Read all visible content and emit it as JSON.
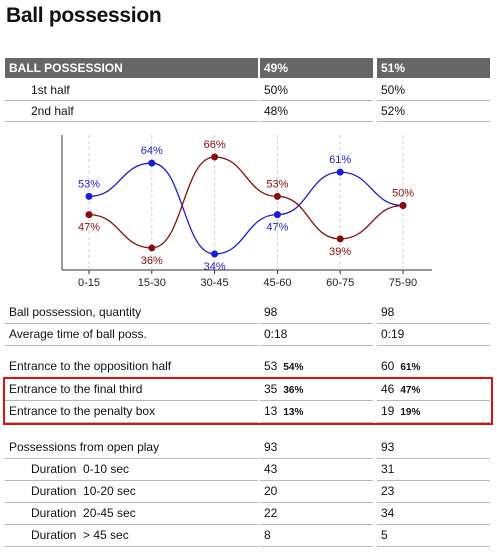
{
  "title": "Ball possession",
  "summary": {
    "header": [
      "BALL POSSESSION",
      "49%",
      "51%"
    ],
    "rows": [
      [
        "1st half",
        "50%",
        "50%"
      ],
      [
        "2nd half",
        "48%",
        "52%"
      ]
    ]
  },
  "chart_data": {
    "type": "line",
    "categories": [
      "0-15",
      "15-30",
      "30-45",
      "45-60",
      "60-75",
      "75-90"
    ],
    "series": [
      {
        "color": "#1c1cd8",
        "values": [
          53,
          64,
          34,
          47,
          61,
          50
        ],
        "value_labels": [
          "53%",
          "64%",
          "34%",
          "47%",
          "61%",
          null
        ]
      },
      {
        "color": "#8a0b0b",
        "values": [
          47,
          36,
          66,
          53,
          39,
          50
        ],
        "value_labels": [
          "47%",
          "36%",
          "66%",
          "53%",
          "39%",
          "50%"
        ]
      }
    ],
    "grid": true
  },
  "stats": {
    "groups": [
      {
        "rows": [
          {
            "label": "Ball possession, quantity",
            "cells": [
              [
                "98"
              ],
              [
                "98"
              ]
            ]
          },
          {
            "label": "Average time of ball poss.",
            "cells": [
              [
                "0:18"
              ],
              [
                "0:19"
              ]
            ]
          }
        ]
      },
      {
        "rows": [
          {
            "label": "Entrance to the opposition half",
            "cells": [
              [
                "53",
                "54%"
              ],
              [
                "60",
                "61%"
              ]
            ]
          }
        ]
      },
      {
        "highlight": true,
        "rows": [
          {
            "label": "Entrance to the final third",
            "cells": [
              [
                "35",
                "36%"
              ],
              [
                "46",
                "47%"
              ]
            ]
          },
          {
            "label": "Entrance to the penalty box",
            "cells": [
              [
                "13",
                "13%"
              ],
              [
                "19",
                "19%"
              ]
            ]
          }
        ]
      },
      {
        "rows": [
          {
            "label": "Possessions from open play",
            "cells": [
              [
                "93"
              ],
              [
                "93"
              ]
            ]
          },
          {
            "label": "Duration  0-10 sec",
            "indent": true,
            "cells": [
              [
                "43"
              ],
              [
                "31"
              ]
            ]
          },
          {
            "label": "Duration  10-20 sec",
            "indent": true,
            "cells": [
              [
                "20"
              ],
              [
                "23"
              ]
            ]
          },
          {
            "label": "Duration  20-45 sec",
            "indent": true,
            "cells": [
              [
                "22"
              ],
              [
                "34"
              ]
            ]
          },
          {
            "label": "Duration  > 45 sec",
            "indent": true,
            "cells": [
              [
                "8"
              ],
              [
                "5"
              ]
            ]
          }
        ]
      }
    ]
  }
}
